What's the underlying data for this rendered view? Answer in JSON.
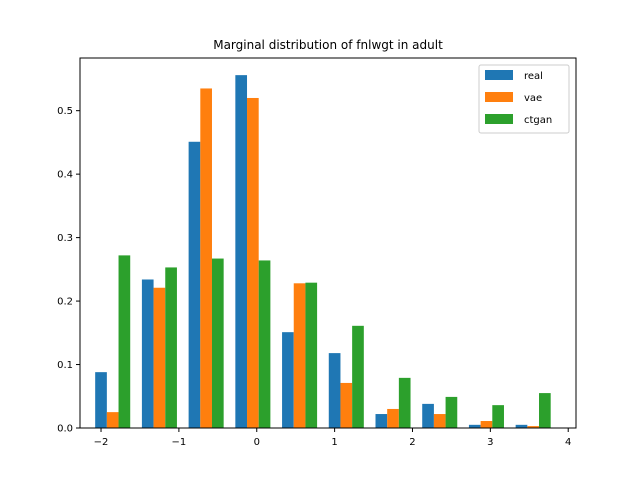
{
  "chart_data": {
    "type": "bar",
    "title": "Marginal distribution of fnlwgt in adult",
    "xlabel": "",
    "ylabel": "",
    "xlim": [
      -2.27,
      4.1
    ],
    "ylim": [
      0,
      0.583
    ],
    "xticks": [
      -2,
      -1,
      0,
      1,
      2,
      3,
      4
    ],
    "xtick_labels": [
      "−2",
      "−1",
      "0",
      "1",
      "2",
      "3",
      "4"
    ],
    "yticks": [
      0.0,
      0.1,
      0.2,
      0.3,
      0.4,
      0.5
    ],
    "ytick_labels": [
      "0.0",
      "0.1",
      "0.2",
      "0.3",
      "0.4",
      "0.5"
    ],
    "bin_centers": [
      -1.85,
      -1.25,
      -0.65,
      -0.05,
      0.55,
      1.15,
      1.75,
      2.35,
      2.95,
      3.55
    ],
    "group_width": 0.45,
    "legend_position": "top-right",
    "grid": false,
    "series": [
      {
        "name": "real",
        "color": "#1f77b4",
        "values": [
          0.088,
          0.234,
          0.451,
          0.556,
          0.151,
          0.118,
          0.022,
          0.038,
          0.005,
          0.005
        ]
      },
      {
        "name": "vae",
        "color": "#ff7f0e",
        "values": [
          0.025,
          0.221,
          0.535,
          0.52,
          0.228,
          0.071,
          0.03,
          0.022,
          0.011,
          0.003
        ]
      },
      {
        "name": "ctgan",
        "color": "#2ca02c",
        "values": [
          0.272,
          0.253,
          0.267,
          0.264,
          0.229,
          0.161,
          0.079,
          0.049,
          0.036,
          0.055
        ]
      }
    ]
  }
}
